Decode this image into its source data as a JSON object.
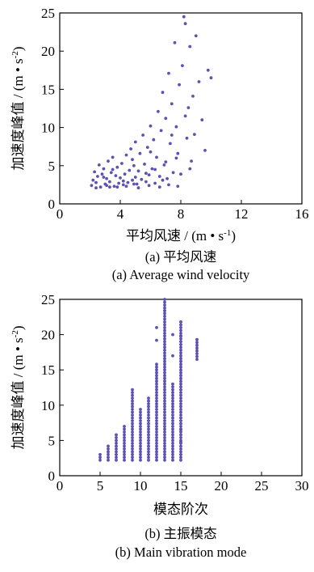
{
  "colors": {
    "point": "#5b52b3",
    "axis": "#000000"
  },
  "chart_data": [
    {
      "type": "scatter",
      "title": "",
      "xlabel": "平均风速 / (m • s⁻¹)",
      "ylabel": "加速度峰值 / (m • s⁻²)",
      "xlim": [
        0,
        16
      ],
      "ylim": [
        0,
        25
      ],
      "xticks": [
        "0",
        "4",
        "8",
        "12",
        "16"
      ],
      "yticks": [
        "0",
        "5",
        "10",
        "15",
        "20",
        "25"
      ],
      "caption_cn": "(a) 平均风速",
      "caption_en": "(a) Average wind velocity",
      "series": [
        {
          "points": [
            [
              2.1,
              2.4
            ],
            [
              2.2,
              3.1
            ],
            [
              2.3,
              4.2
            ],
            [
              2.4,
              2.8
            ],
            [
              2.5,
              3.6
            ],
            [
              2.6,
              5.1
            ],
            [
              2.7,
              2.2
            ],
            [
              2.8,
              3.9
            ],
            [
              2.9,
              4.6
            ],
            [
              3.0,
              2.6
            ],
            [
              3.1,
              3.3
            ],
            [
              3.2,
              5.6
            ],
            [
              3.3,
              2.9
            ],
            [
              3.4,
              4.1
            ],
            [
              3.5,
              6.1
            ],
            [
              3.6,
              2.3
            ],
            [
              3.7,
              3.7
            ],
            [
              3.8,
              4.8
            ],
            [
              3.9,
              2.7
            ],
            [
              4.0,
              3.4
            ],
            [
              4.1,
              5.3
            ],
            [
              4.2,
              2.5
            ],
            [
              4.3,
              3.9
            ],
            [
              4.4,
              6.4
            ],
            [
              4.5,
              2.8
            ],
            [
              4.6,
              4.4
            ],
            [
              4.7,
              7.2
            ],
            [
              4.8,
              3.1
            ],
            [
              4.9,
              5.0
            ],
            [
              5.0,
              8.1
            ],
            [
              5.1,
              2.6
            ],
            [
              5.2,
              4.3
            ],
            [
              5.3,
              6.6
            ],
            [
              5.4,
              3.2
            ],
            [
              5.5,
              9.0
            ],
            [
              5.6,
              5.2
            ],
            [
              5.7,
              2.9
            ],
            [
              5.8,
              7.4
            ],
            [
              5.9,
              3.8
            ],
            [
              6.0,
              10.2
            ],
            [
              6.1,
              4.6
            ],
            [
              6.2,
              8.4
            ],
            [
              6.3,
              2.7
            ],
            [
              6.4,
              6.1
            ],
            [
              6.5,
              12.1
            ],
            [
              6.6,
              3.6
            ],
            [
              6.7,
              9.6
            ],
            [
              6.8,
              14.6
            ],
            [
              6.9,
              5.1
            ],
            [
              7.0,
              11.2
            ],
            [
              7.1,
              3.3
            ],
            [
              7.2,
              17.1
            ],
            [
              7.3,
              7.9
            ],
            [
              7.4,
              13.1
            ],
            [
              7.5,
              4.1
            ],
            [
              7.6,
              21.1
            ],
            [
              7.7,
              10.1
            ],
            [
              7.8,
              6.6
            ],
            [
              7.9,
              15.6
            ],
            [
              8.0,
              3.9
            ],
            [
              8.1,
              18.1
            ],
            [
              8.2,
              24.5
            ],
            [
              8.3,
              23.6
            ],
            [
              8.4,
              8.6
            ],
            [
              8.5,
              12.6
            ],
            [
              8.6,
              20.6
            ],
            [
              8.7,
              5.6
            ],
            [
              8.8,
              14.1
            ],
            [
              8.9,
              9.1
            ],
            [
              9.0,
              22.0
            ],
            [
              9.2,
              16.0
            ],
            [
              9.4,
              11.0
            ],
            [
              9.6,
              7.0
            ],
            [
              9.8,
              17.5
            ],
            [
              10.0,
              16.5
            ],
            [
              2.4,
              2.1
            ],
            [
              3.1,
              2.4
            ],
            [
              3.8,
              2.2
            ],
            [
              4.4,
              2.3
            ],
            [
              5.2,
              2.1
            ],
            [
              5.9,
              2.4
            ],
            [
              6.6,
              2.2
            ],
            [
              7.2,
              2.5
            ],
            [
              7.8,
              2.3
            ],
            [
              4.2,
              3.0
            ],
            [
              5.0,
              3.5
            ],
            [
              5.7,
              4.0
            ],
            [
              6.3,
              4.5
            ],
            [
              7.0,
              5.5
            ],
            [
              7.7,
              6.0
            ],
            [
              3.5,
              4.5
            ],
            [
              4.8,
              5.8
            ],
            [
              6.0,
              6.8
            ],
            [
              7.4,
              9.0
            ],
            [
              8.3,
              11.5
            ],
            [
              2.9,
              3.5
            ],
            [
              3.3,
              2.2
            ],
            [
              4.9,
              2.6
            ],
            [
              6.8,
              3.1
            ],
            [
              8.6,
              4.6
            ]
          ]
        }
      ]
    },
    {
      "type": "scatter",
      "title": "",
      "xlabel": "模态阶次",
      "ylabel": "加速度峰值 / (m • s⁻²)",
      "xlim": [
        0,
        30
      ],
      "ylim": [
        0,
        25
      ],
      "xticks": [
        "0",
        "5",
        "10",
        "15",
        "20",
        "25",
        "30"
      ],
      "yticks": [
        "0",
        "5",
        "10",
        "15",
        "20",
        "25"
      ],
      "caption_cn": "(b) 主振模态",
      "caption_en": "(b) Main vibration mode",
      "columns": [
        {
          "x": 5,
          "min": 2.2,
          "max": 3.0
        },
        {
          "x": 6,
          "min": 2.2,
          "max": 4.5
        },
        {
          "x": 7,
          "min": 2.2,
          "max": 6.0
        },
        {
          "x": 8,
          "min": 2.2,
          "max": 7.2
        },
        {
          "x": 9,
          "min": 2.2,
          "max": 12.5
        },
        {
          "x": 10,
          "min": 2.2,
          "max": 9.5
        },
        {
          "x": 11,
          "min": 2.2,
          "max": 11.0
        },
        {
          "x": 12,
          "min": 2.2,
          "max": 16.0
        },
        {
          "x": 13,
          "min": 2.2,
          "max": 25.0
        },
        {
          "x": 14,
          "min": 2.2,
          "max": 13.0
        },
        {
          "x": 15,
          "min": 2.2,
          "max": 22.0
        },
        {
          "x": 17,
          "min": 16.5,
          "max": 19.5
        }
      ],
      "extra_points": [
        [
          12,
          19.2
        ],
        [
          12,
          21.0
        ],
        [
          13,
          23.4
        ],
        [
          14,
          17.0
        ],
        [
          15,
          19.8
        ],
        [
          15,
          6.5
        ],
        [
          15,
          4.8
        ],
        [
          14,
          20.0
        ]
      ]
    }
  ]
}
